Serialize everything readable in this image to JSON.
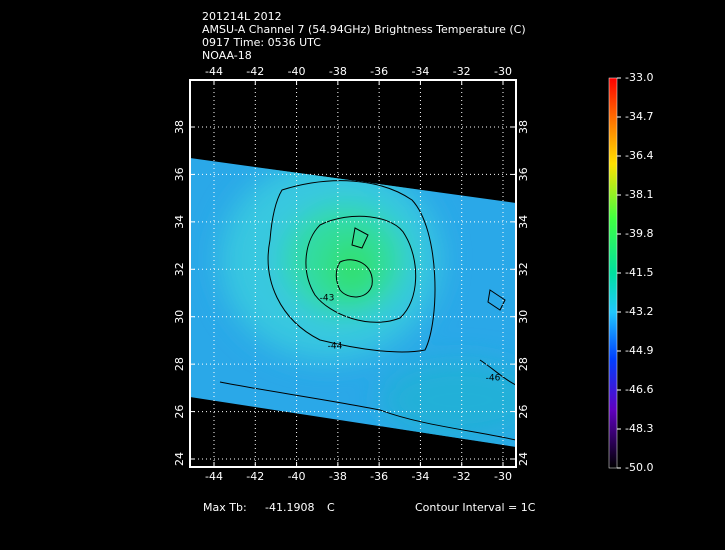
{
  "header": {
    "lines": [
      "201214L 2012",
      "AMSU-A Channel 7 (54.94GHz) Brightness Temperature (C)",
      "0917 Time: 0536 UTC",
      "NOAA-18"
    ]
  },
  "map": {
    "lon_ticks": [
      -44,
      -42,
      -40,
      -38,
      -36,
      -34,
      -32,
      -30
    ],
    "lat_ticks": [
      24,
      26,
      28,
      30,
      32,
      34,
      36,
      38
    ],
    "contour_labels": [
      -43,
      -44,
      -46
    ]
  },
  "colorbar": {
    "ticks": [
      {
        "value": -33,
        "label": "-33.0"
      },
      {
        "value": -34.7,
        "label": "-34.7"
      },
      {
        "value": -36.4,
        "label": "-36.4"
      },
      {
        "value": -38.1,
        "label": "-38.1"
      },
      {
        "value": -39.8,
        "label": "-39.8"
      },
      {
        "value": -41.5,
        "label": "-41.5"
      },
      {
        "value": -43.2,
        "label": "-43.2"
      },
      {
        "value": -44.9,
        "label": "-44.9"
      },
      {
        "value": -46.6,
        "label": "-46.6"
      },
      {
        "value": -48.3,
        "label": "-48.3"
      },
      {
        "value": -50,
        "label": "-50.0"
      }
    ]
  },
  "footer": {
    "max_label": "Max Tb:",
    "max_value": -41.1908,
    "unit": "C",
    "contour_interval": "Contour Interval = 1C"
  }
}
